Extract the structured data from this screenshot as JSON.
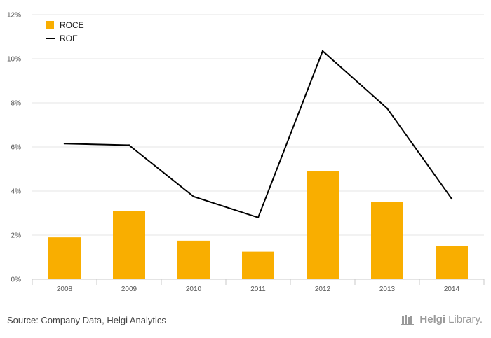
{
  "chart_data": {
    "type": "bar",
    "categories": [
      "2008",
      "2009",
      "2010",
      "2011",
      "2012",
      "2013",
      "2014"
    ],
    "series": [
      {
        "name": "ROCE",
        "type": "bar",
        "color": "#F9AE00",
        "values": [
          1.9,
          3.1,
          1.75,
          1.25,
          4.9,
          3.5,
          1.5
        ]
      },
      {
        "name": "ROE",
        "type": "line",
        "color": "#000000",
        "values": [
          6.15,
          6.08,
          3.75,
          2.8,
          10.35,
          7.75,
          3.65
        ]
      }
    ],
    "ylim": [
      0,
      12
    ],
    "yticks": [
      0,
      2,
      4,
      6,
      8,
      10,
      12
    ],
    "ytick_suffix": "%",
    "grid": true,
    "legend": "top-left"
  },
  "footer": {
    "source": "Source: Company Data, Helgi Analytics",
    "brand_part1": "Helgi",
    "brand_part2": "Library."
  },
  "icons": {
    "brand": "bookshelf-icon"
  }
}
